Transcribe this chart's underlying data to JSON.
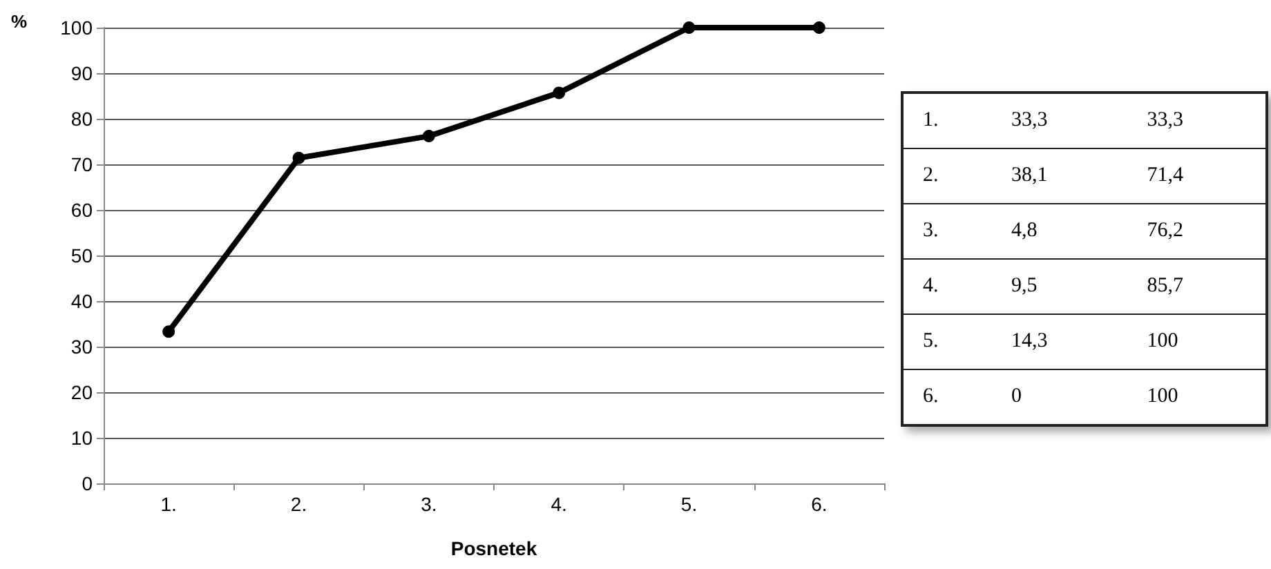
{
  "chart_data": {
    "type": "line",
    "xlabel": "Posnetek",
    "ylabel": "%",
    "categories": [
      "1.",
      "2.",
      "3.",
      "4.",
      "5.",
      "6."
    ],
    "series": [
      {
        "color": "#000000",
        "values": [
          33.3,
          71.4,
          76.2,
          85.7,
          100,
          100
        ]
      }
    ],
    "annotations": [
      "33,3",
      "33,3",
      "38,1",
      "71,4",
      "4,8",
      "76,2",
      "9,5",
      "85,7",
      "14,3",
      "100",
      "0",
      "100"
    ],
    "ylim": [
      0,
      100
    ],
    "yticks": [
      0,
      10,
      20,
      30,
      40,
      50,
      60,
      70,
      80,
      90,
      100
    ],
    "grid": "y",
    "marker": "circle",
    "line_style": "solid"
  }
}
